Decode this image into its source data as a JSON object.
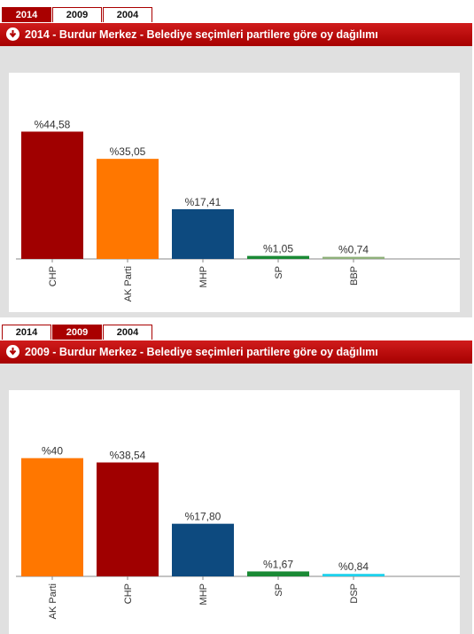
{
  "panels": [
    {
      "tabs": [
        {
          "label": "2014",
          "active": true
        },
        {
          "label": "2009",
          "active": false
        },
        {
          "label": "2004",
          "active": false
        }
      ],
      "title": "2014 - Burdur Merkez - Belediye seçimleri partilere göre oy dağılımı"
    },
    {
      "tabs": [
        {
          "label": "2014",
          "active": false
        },
        {
          "label": "2009",
          "active": true
        },
        {
          "label": "2004",
          "active": false
        }
      ],
      "title": "2009 - Burdur Merkez - Belediye seçimleri partilere göre oy dağılımı"
    }
  ],
  "colors": {
    "accent": "#a90000",
    "chp": "#a00000",
    "akp": "#ff7700",
    "mhp": "#0d4a7f",
    "sp": "#1a8a35",
    "bbp": "#8eb07a",
    "dsp": "#1ed1ec"
  },
  "chart_data": [
    {
      "type": "bar",
      "categories": [
        "CHP",
        "AK Parti",
        "MHP",
        "SP",
        "BBP"
      ],
      "values": [
        44.58,
        35.05,
        17.41,
        1.05,
        0.74
      ],
      "value_labels": [
        "%44,58",
        "%35,05",
        "%17,41",
        "%1,05",
        "%0,74"
      ],
      "colors": [
        "#a00000",
        "#ff7700",
        "#0d4a7f",
        "#1a8a35",
        "#8eb07a"
      ],
      "ylim": [
        0,
        50
      ],
      "grid": false,
      "title": "",
      "xlabel": "",
      "ylabel": ""
    },
    {
      "type": "bar",
      "categories": [
        "AK Parti",
        "CHP",
        "MHP",
        "SP",
        "DSP"
      ],
      "values": [
        40,
        38.54,
        17.8,
        1.67,
        0.84
      ],
      "value_labels": [
        "%40",
        "%38,54",
        "%17,80",
        "%1,67",
        "%0,84"
      ],
      "colors": [
        "#ff7700",
        "#a00000",
        "#0d4a7f",
        "#1a8a35",
        "#1ed1ec"
      ],
      "ylim": [
        0,
        45
      ],
      "grid": false,
      "title": "",
      "xlabel": "",
      "ylabel": ""
    }
  ]
}
